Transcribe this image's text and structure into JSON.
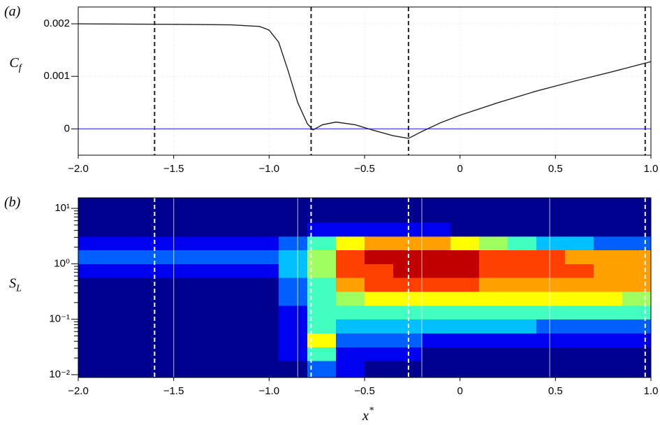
{
  "chart_data": [
    {
      "type": "line",
      "panel_label": "(a)",
      "ylabel": "C",
      "ylabel_subscript": "f",
      "x": [
        -2,
        -1.5,
        -1.2,
        -1.05,
        -1.0,
        -0.95,
        -0.9,
        -0.85,
        -0.8,
        -0.77,
        -0.72,
        -0.65,
        -0.55,
        -0.45,
        -0.35,
        -0.27,
        -0.2,
        -0.1,
        0,
        0.2,
        0.4,
        0.6,
        0.8,
        1.0
      ],
      "series": [
        {
          "color": "#222222",
          "values": [
            0.002,
            0.00199,
            0.00198,
            0.00195,
            0.00188,
            0.00165,
            0.0011,
            0.0005,
            0.0001,
            -2e-05,
            8e-05,
            0.00013,
            8e-05,
            -3e-05,
            -0.00013,
            -0.00018,
            -5e-05,
            0.00012,
            0.00026,
            0.0005,
            0.00072,
            0.00091,
            0.00109,
            0.00128
          ]
        }
      ],
      "xlim": [
        -2,
        1
      ],
      "ylim": [
        -0.0005,
        0.00232
      ],
      "xticks": [
        {
          "value": -2,
          "label": "−2.0"
        },
        {
          "value": -1.5,
          "label": "−1.5"
        },
        {
          "value": -1,
          "label": "−1.0"
        },
        {
          "value": -0.5,
          "label": "−0.5"
        },
        0,
        0.5,
        {
          "value": 1,
          "label": "1.0"
        }
      ],
      "yticks": [
        0,
        0.001,
        0.002
      ],
      "grid": true,
      "reference_line": {
        "value": 0,
        "color": "#5a5aff"
      },
      "dashed_lines": [
        -1.6,
        -0.78,
        -0.27,
        0.97
      ],
      "dashed_color": "#222222"
    },
    {
      "type": "contour",
      "panel_label": "(b)",
      "ylabel": "S",
      "ylabel_subscript": "L",
      "xlabel": "x",
      "xlabel_superscript": "*",
      "yscale": "log",
      "x_edges": [
        -2,
        -1.85,
        -1.7,
        -1.55,
        -1.4,
        -1.25,
        -1.1,
        -0.95,
        -0.8,
        -0.65,
        -0.5,
        -0.35,
        -0.2,
        -0.05,
        0.1,
        0.25,
        0.4,
        0.55,
        0.7,
        0.85,
        1
      ],
      "y_edges": [
        0.0089,
        0.0178,
        0.0316,
        0.0562,
        0.1,
        0.178,
        0.316,
        0.562,
        1,
        1.78,
        3.16,
        5.62,
        10,
        15.5
      ],
      "z": [
        [
          0,
          0,
          0,
          0,
          0,
          0,
          0,
          0,
          2,
          1,
          0,
          0,
          0,
          0,
          0,
          0,
          0,
          0,
          0,
          0
        ],
        [
          0,
          0,
          0,
          0,
          0,
          0,
          0,
          1,
          4,
          1,
          1,
          1,
          0,
          0,
          0,
          0,
          0,
          0,
          0,
          0
        ],
        [
          0,
          0,
          0,
          0,
          0,
          0,
          0,
          1,
          6,
          2,
          2,
          2,
          1,
          1,
          1,
          1,
          1,
          1,
          1,
          1
        ],
        [
          0,
          0,
          0,
          0,
          0,
          0,
          0,
          1,
          4,
          3,
          3,
          3,
          3,
          3,
          3,
          3,
          2,
          2,
          2,
          2
        ],
        [
          0,
          0,
          0,
          0,
          0,
          0,
          0,
          1,
          4,
          4,
          4,
          4,
          4,
          4,
          4,
          4,
          4,
          4,
          4,
          4
        ],
        [
          0,
          0,
          0,
          0,
          0,
          0,
          0,
          2,
          4,
          5,
          6,
          6,
          6,
          6,
          6,
          6,
          6,
          6,
          6,
          5
        ],
        [
          0,
          0,
          0,
          0,
          0,
          0,
          0,
          2,
          4,
          7,
          8,
          8,
          8,
          8,
          7,
          7,
          7,
          7,
          7,
          7
        ],
        [
          1,
          1,
          1,
          1,
          1,
          1,
          1,
          3,
          5,
          8,
          8,
          9,
          9,
          9,
          8,
          8,
          8,
          8,
          7,
          7
        ],
        [
          2,
          2,
          2,
          2,
          2,
          2,
          2,
          3,
          5,
          8,
          9,
          9,
          9,
          9,
          8,
          8,
          8,
          7,
          7,
          7
        ],
        [
          1,
          1,
          1,
          1,
          1,
          1,
          1,
          2,
          4,
          6,
          7,
          7,
          7,
          6,
          5,
          4,
          3,
          3,
          2,
          2
        ],
        [
          0,
          0,
          0,
          0,
          0,
          0,
          0,
          0,
          1,
          1,
          1,
          1,
          1,
          0,
          0,
          0,
          0,
          0,
          0,
          0
        ],
        [
          0,
          0,
          0,
          0,
          0,
          0,
          0,
          0,
          0,
          0,
          0,
          0,
          0,
          0,
          0,
          0,
          0,
          0,
          0,
          0
        ],
        [
          0,
          0,
          0,
          0,
          0,
          0,
          0,
          0,
          0,
          0,
          0,
          0,
          0,
          0,
          0,
          0,
          0,
          0,
          0,
          0
        ]
      ],
      "colors": [
        "#00008f",
        "#0000f0",
        "#0060ff",
        "#00c0ff",
        "#40ffc0",
        "#a0ff60",
        "#ffff00",
        "#ffa000",
        "#ff4000",
        "#c00000"
      ],
      "xlim": [
        -2,
        1
      ],
      "ylim": [
        0.0089,
        15.5
      ],
      "xticks": [
        {
          "value": -2,
          "label": "−2.0"
        },
        {
          "value": -1.5,
          "label": "−1.5"
        },
        {
          "value": -1,
          "label": "−1.0"
        },
        {
          "value": -0.5,
          "label": "−0.5"
        },
        0,
        0.5,
        {
          "value": 1,
          "label": "1.0"
        }
      ],
      "yticks": [
        {
          "value": 0.01,
          "label": "10⁻²"
        },
        {
          "value": 0.1,
          "label": "10⁻¹"
        },
        {
          "value": 1,
          "label": "10⁰"
        },
        {
          "value": 10,
          "label": "10¹"
        }
      ],
      "dashed_lines": [
        -1.6,
        -0.78,
        -0.27,
        0.97
      ],
      "dashed_color": "#ffffff",
      "solid_lines": [
        -1.5,
        -0.85,
        -0.2,
        0.47
      ]
    }
  ]
}
